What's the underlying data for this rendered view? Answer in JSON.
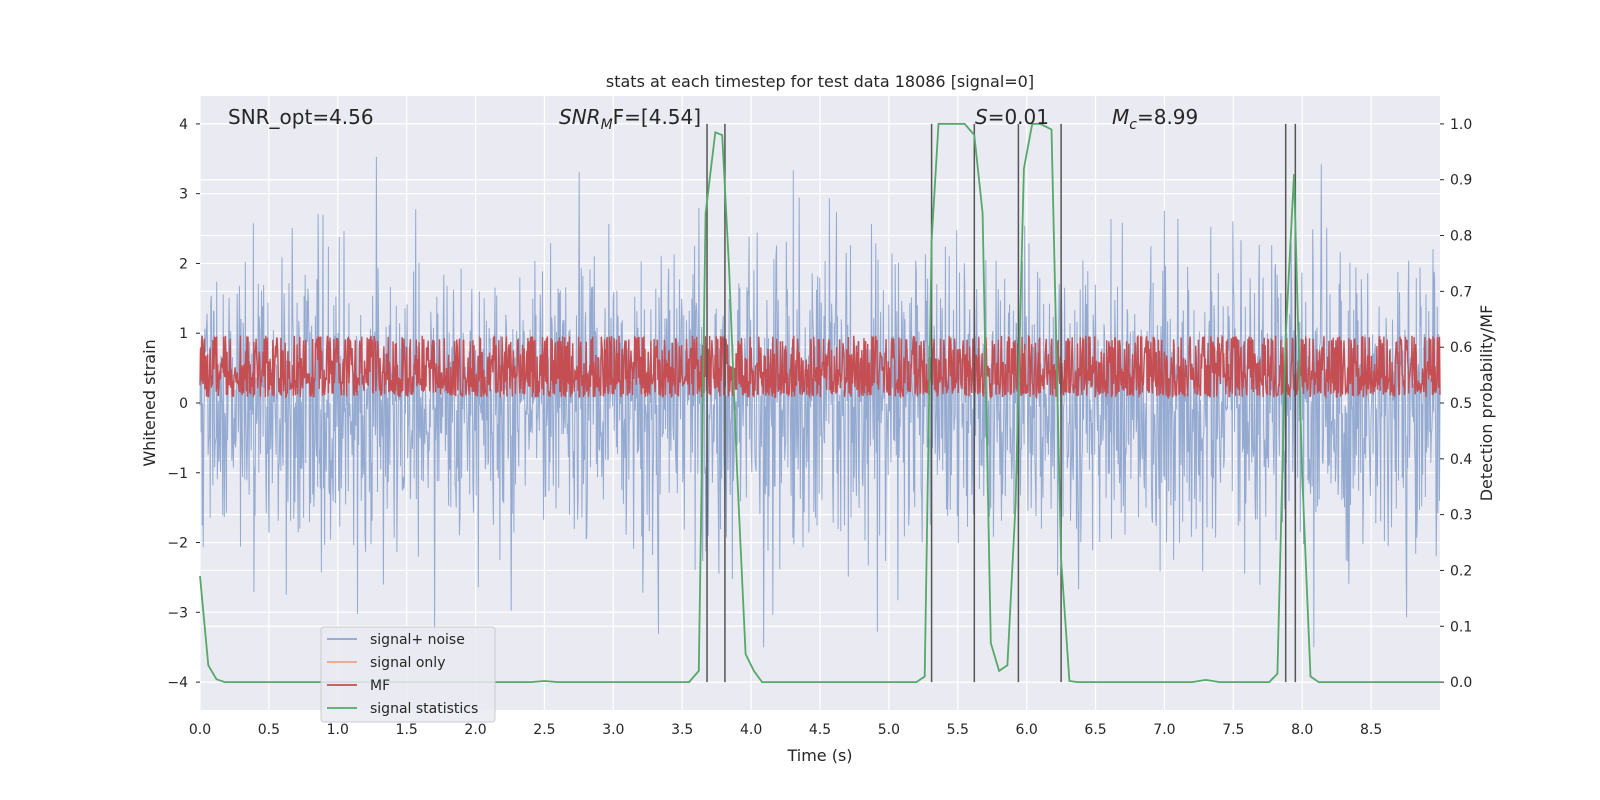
{
  "chart_data": {
    "type": "line",
    "title": "stats at each timestep for test data 18086 [signal=0]",
    "xlabel": "Time (s)",
    "ylabel_left": "Whitened strain",
    "ylabel_right": "Detection probability/MF",
    "xlim": [
      0.0,
      9.0
    ],
    "ylim_left": [
      -4.4,
      4.4
    ],
    "ylim_right": [
      -0.05,
      1.05
    ],
    "x_ticks": [
      "0.0",
      "0.5",
      "1.0",
      "1.5",
      "2.0",
      "2.5",
      "3.0",
      "3.5",
      "4.0",
      "4.5",
      "5.0",
      "5.5",
      "6.0",
      "6.5",
      "7.0",
      "7.5",
      "8.0",
      "8.5"
    ],
    "y_ticks_left": [
      "−4",
      "−3",
      "−2",
      "−1",
      "0",
      "1",
      "2",
      "3",
      "4"
    ],
    "y_ticks_right": [
      "0.0",
      "0.1",
      "0.2",
      "0.3",
      "0.4",
      "0.5",
      "0.6",
      "0.7",
      "0.8",
      "0.9",
      "1.0"
    ],
    "grid": true,
    "legend_position": "lower-left",
    "annotations": {
      "snr_opt": "SNR_opt=4.56",
      "snr_mf_main": "SNR",
      "snr_mf_sub": "M",
      "snr_mf_rest": "F=[4.54]",
      "s_main": "S",
      "s_rest": "=0.01",
      "mc_main": "M",
      "mc_sub": "c",
      "mc_rest": "=8.99"
    },
    "colors": {
      "signal_noise": "#8fa6cf",
      "signal_only": "#e9a48a",
      "mf": "#c44e52",
      "signal_statistics": "#55a868",
      "vlines": "#555555",
      "background": "#eaeaf2",
      "grid": "#ffffff"
    },
    "series": [
      {
        "name": "signal+ noise",
        "description_values": "whitened strain noise, amplitude approx within [-3.5, 3.6]"
      },
      {
        "name": "signal only",
        "values": []
      },
      {
        "name": "MF",
        "range": [
          0.05,
          0.85
        ]
      },
      {
        "name": "signal statistics",
        "x": [
          0.0,
          0.06,
          0.12,
          0.18,
          0.3,
          2.4,
          2.5,
          2.6,
          3.55,
          3.62,
          3.67,
          3.74,
          3.79,
          3.84,
          3.9,
          3.96,
          4.02,
          4.08,
          4.15,
          5.2,
          5.26,
          5.31,
          5.36,
          5.45,
          5.55,
          5.62,
          5.68,
          5.74,
          5.8,
          5.86,
          5.92,
          5.98,
          6.04,
          6.1,
          6.18,
          6.25,
          6.31,
          6.37,
          6.43,
          7.2,
          7.3,
          7.4,
          7.76,
          7.82,
          7.88,
          7.94,
          8.0,
          8.06,
          8.12,
          9.0
        ],
        "y": [
          0.19,
          0.03,
          0.005,
          0.0,
          0.0,
          0.0,
          0.002,
          0.0,
          0.0,
          0.02,
          0.84,
          0.985,
          0.98,
          0.74,
          0.37,
          0.05,
          0.02,
          0.0,
          0.0,
          0.0,
          0.01,
          0.79,
          1.0,
          1.0,
          1.0,
          0.98,
          0.84,
          0.07,
          0.02,
          0.03,
          0.32,
          0.92,
          1.0,
          1.0,
          0.99,
          0.22,
          0.002,
          0.0,
          0.0,
          0.0,
          0.004,
          0.0,
          0.0,
          0.015,
          0.62,
          0.91,
          0.37,
          0.01,
          0.0,
          0.0
        ]
      }
    ],
    "vertical_lines_x": [
      3.68,
      3.81,
      5.31,
      5.62,
      5.94,
      6.25,
      7.88,
      7.95
    ]
  }
}
